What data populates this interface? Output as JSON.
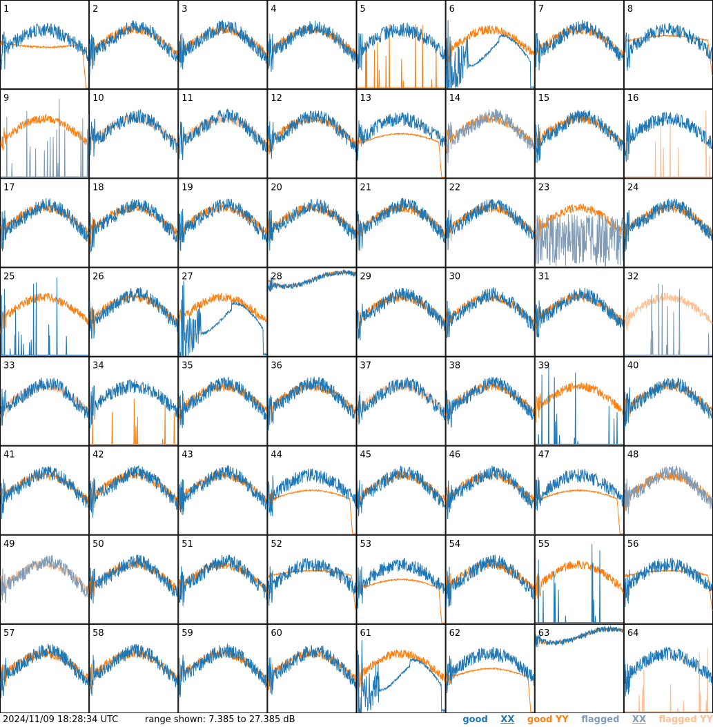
{
  "chart_data": {
    "type": "line",
    "title": "",
    "grid": {
      "rows": 8,
      "cols": 8
    },
    "ylim_db": [
      7.385,
      27.385
    ],
    "panels": [
      {
        "id": "1",
        "xx": "good",
        "yy": "good",
        "shape": "drop"
      },
      {
        "id": "2",
        "xx": "good",
        "yy": "good",
        "shape": "normal"
      },
      {
        "id": "3",
        "xx": "good",
        "yy": "good",
        "shape": "normal"
      },
      {
        "id": "4",
        "xx": "good",
        "yy": "good",
        "shape": "normal"
      },
      {
        "id": "5",
        "xx": "good",
        "yy": "good",
        "shape": "yy-dead"
      },
      {
        "id": "6",
        "xx": "good",
        "yy": "good",
        "shape": "xx-hump"
      },
      {
        "id": "7",
        "xx": "good",
        "yy": "good",
        "shape": "normal"
      },
      {
        "id": "8",
        "xx": "good",
        "yy": "good",
        "shape": "flat-yy"
      },
      {
        "id": "9",
        "xx": "flagged",
        "yy": "good",
        "shape": "xx-dead"
      },
      {
        "id": "10",
        "xx": "good",
        "yy": "flagged",
        "shape": "normal"
      },
      {
        "id": "11",
        "xx": "good",
        "yy": "flagged",
        "shape": "normal"
      },
      {
        "id": "12",
        "xx": "good",
        "yy": "good",
        "shape": "normal"
      },
      {
        "id": "13",
        "xx": "good",
        "yy": "good",
        "shape": "drop-yy"
      },
      {
        "id": "14",
        "xx": "flagged",
        "yy": "good",
        "shape": "normal"
      },
      {
        "id": "15",
        "xx": "good",
        "yy": "good",
        "shape": "normal"
      },
      {
        "id": "16",
        "xx": "good",
        "yy": "flagged",
        "shape": "yy-dead"
      },
      {
        "id": "17",
        "xx": "good",
        "yy": "good",
        "shape": "normal"
      },
      {
        "id": "18",
        "xx": "good",
        "yy": "good",
        "shape": "normal"
      },
      {
        "id": "19",
        "xx": "good",
        "yy": "good",
        "shape": "normal"
      },
      {
        "id": "20",
        "xx": "good",
        "yy": "good",
        "shape": "normal"
      },
      {
        "id": "21",
        "xx": "good",
        "yy": "good",
        "shape": "normal"
      },
      {
        "id": "22",
        "xx": "good",
        "yy": "good",
        "shape": "normal"
      },
      {
        "id": "23",
        "xx": "flagged",
        "yy": "good",
        "shape": "xx-noisy"
      },
      {
        "id": "24",
        "xx": "good",
        "yy": "good",
        "shape": "normal"
      },
      {
        "id": "25",
        "xx": "good",
        "yy": "good",
        "shape": "xx-dead"
      },
      {
        "id": "26",
        "xx": "good",
        "yy": "good",
        "shape": "normal"
      },
      {
        "id": "27",
        "xx": "good",
        "yy": "good",
        "shape": "xx-hump"
      },
      {
        "id": "28",
        "xx": "good",
        "yy": "good",
        "shape": "flat-high"
      },
      {
        "id": "29",
        "xx": "good",
        "yy": "good",
        "shape": "normal"
      },
      {
        "id": "30",
        "xx": "good",
        "yy": "good",
        "shape": "normal"
      },
      {
        "id": "31",
        "xx": "good",
        "yy": "good",
        "shape": "normal"
      },
      {
        "id": "32",
        "xx": "flagged",
        "yy": "flagged",
        "shape": "xx-dead"
      },
      {
        "id": "33",
        "xx": "good",
        "yy": "flagged",
        "shape": "normal"
      },
      {
        "id": "34",
        "xx": "good",
        "yy": "good",
        "shape": "yy-dead"
      },
      {
        "id": "35",
        "xx": "good",
        "yy": "good",
        "shape": "normal"
      },
      {
        "id": "36",
        "xx": "good",
        "yy": "good",
        "shape": "normal"
      },
      {
        "id": "37",
        "xx": "good",
        "yy": "flagged",
        "shape": "normal"
      },
      {
        "id": "38",
        "xx": "good",
        "yy": "good",
        "shape": "normal"
      },
      {
        "id": "39",
        "xx": "good",
        "yy": "good",
        "shape": "xx-dead"
      },
      {
        "id": "40",
        "xx": "good",
        "yy": "good",
        "shape": "normal"
      },
      {
        "id": "41",
        "xx": "good",
        "yy": "good",
        "shape": "normal"
      },
      {
        "id": "42",
        "xx": "good",
        "yy": "good",
        "shape": "normal"
      },
      {
        "id": "43",
        "xx": "good",
        "yy": "good",
        "shape": "normal"
      },
      {
        "id": "44",
        "xx": "good",
        "yy": "good",
        "shape": "drop-yy"
      },
      {
        "id": "45",
        "xx": "good",
        "yy": "good",
        "shape": "normal"
      },
      {
        "id": "46",
        "xx": "good",
        "yy": "good",
        "shape": "normal"
      },
      {
        "id": "47",
        "xx": "good",
        "yy": "good",
        "shape": "drop-yy"
      },
      {
        "id": "48",
        "xx": "flagged",
        "yy": "good",
        "shape": "normal"
      },
      {
        "id": "49",
        "xx": "flagged",
        "yy": "flagged",
        "shape": "normal"
      },
      {
        "id": "50",
        "xx": "good",
        "yy": "good",
        "shape": "normal"
      },
      {
        "id": "51",
        "xx": "good",
        "yy": "good",
        "shape": "normal"
      },
      {
        "id": "52",
        "xx": "good",
        "yy": "good",
        "shape": "flat-yy"
      },
      {
        "id": "53",
        "xx": "good",
        "yy": "good",
        "shape": "drop-yy"
      },
      {
        "id": "54",
        "xx": "good",
        "yy": "good",
        "shape": "normal"
      },
      {
        "id": "55",
        "xx": "good",
        "yy": "good",
        "shape": "xx-dead"
      },
      {
        "id": "56",
        "xx": "good",
        "yy": "good",
        "shape": "flat-yy"
      },
      {
        "id": "57",
        "xx": "good",
        "yy": "good",
        "shape": "normal"
      },
      {
        "id": "58",
        "xx": "good",
        "yy": "good",
        "shape": "normal"
      },
      {
        "id": "59",
        "xx": "good",
        "yy": "good",
        "shape": "normal"
      },
      {
        "id": "60",
        "xx": "good",
        "yy": "good",
        "shape": "normal"
      },
      {
        "id": "61",
        "xx": "good",
        "yy": "good",
        "shape": "xx-hump"
      },
      {
        "id": "62",
        "xx": "good",
        "yy": "good",
        "shape": "drop-yy"
      },
      {
        "id": "63",
        "xx": "good",
        "yy": "good",
        "shape": "flat-high"
      },
      {
        "id": "64",
        "xx": "good",
        "yy": "flagged",
        "shape": "yy-dead"
      }
    ]
  },
  "footer": {
    "timestamp": "2024/11/09 18:28:34 UTC",
    "range_text": "range shown: 7.385 to 27.385 dB"
  },
  "legend": {
    "good_xx": "good XX",
    "good_yy": "good YY",
    "flagged_xx": "flagged XX",
    "flagged_yy": "flagged YY"
  },
  "colors": {
    "good_xx": "#1f77b4",
    "good_yy": "#ff7f0e",
    "flagged_xx": "#7f9bb5",
    "flagged_yy": "#ffbe8f",
    "frame": "#000000"
  }
}
